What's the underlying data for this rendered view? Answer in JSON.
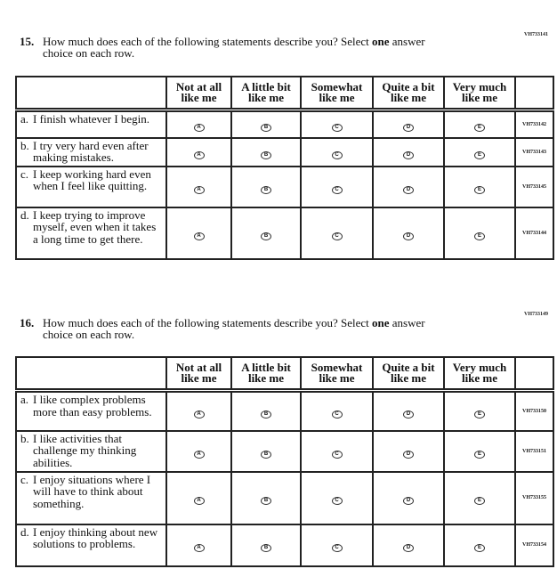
{
  "options": [
    "Not at all like me",
    "A little bit like me",
    "Somewhat like me",
    "Quite a bit like me",
    "Very much like me"
  ],
  "bubbles": [
    "A",
    "B",
    "C",
    "D",
    "E"
  ],
  "questions": [
    {
      "code": "VH733141",
      "number": "15.",
      "text_before": "How much does each of the following statements describe you? Select ",
      "text_bold": "one",
      "text_after": " answer",
      "text_cont": "choice on each row.",
      "rows": [
        {
          "letter": "a.",
          "text": "I finish whatever I begin.",
          "code": "VH733142"
        },
        {
          "letter": "b.",
          "text": "I try very hard even after making mistakes.",
          "code": "VH733143"
        },
        {
          "letter": "c.",
          "text": "I keep working hard even when I feel like quitting.",
          "code": "VH733145"
        },
        {
          "letter": "d.",
          "text": "I keep trying to improve myself, even when it takes a long time to get there.",
          "code": "VH733144"
        }
      ]
    },
    {
      "code": "VH733149",
      "number": "16.",
      "text_before": "How much does each of the following statements describe you? Select ",
      "text_bold": "one",
      "text_after": " answer",
      "text_cont": "choice on each row.",
      "rows": [
        {
          "letter": "a.",
          "text": "I like complex problems more than easy problems.",
          "code": "VH733150"
        },
        {
          "letter": "b.",
          "text": "I like activities that challenge my thinking abilities.",
          "code": "VH733151"
        },
        {
          "letter": "c.",
          "text": "I enjoy situations where I will have to think about something.",
          "code": "VH733155"
        },
        {
          "letter": "d.",
          "text": "I enjoy thinking about new solutions to problems.",
          "code": "VH733154"
        }
      ]
    }
  ]
}
